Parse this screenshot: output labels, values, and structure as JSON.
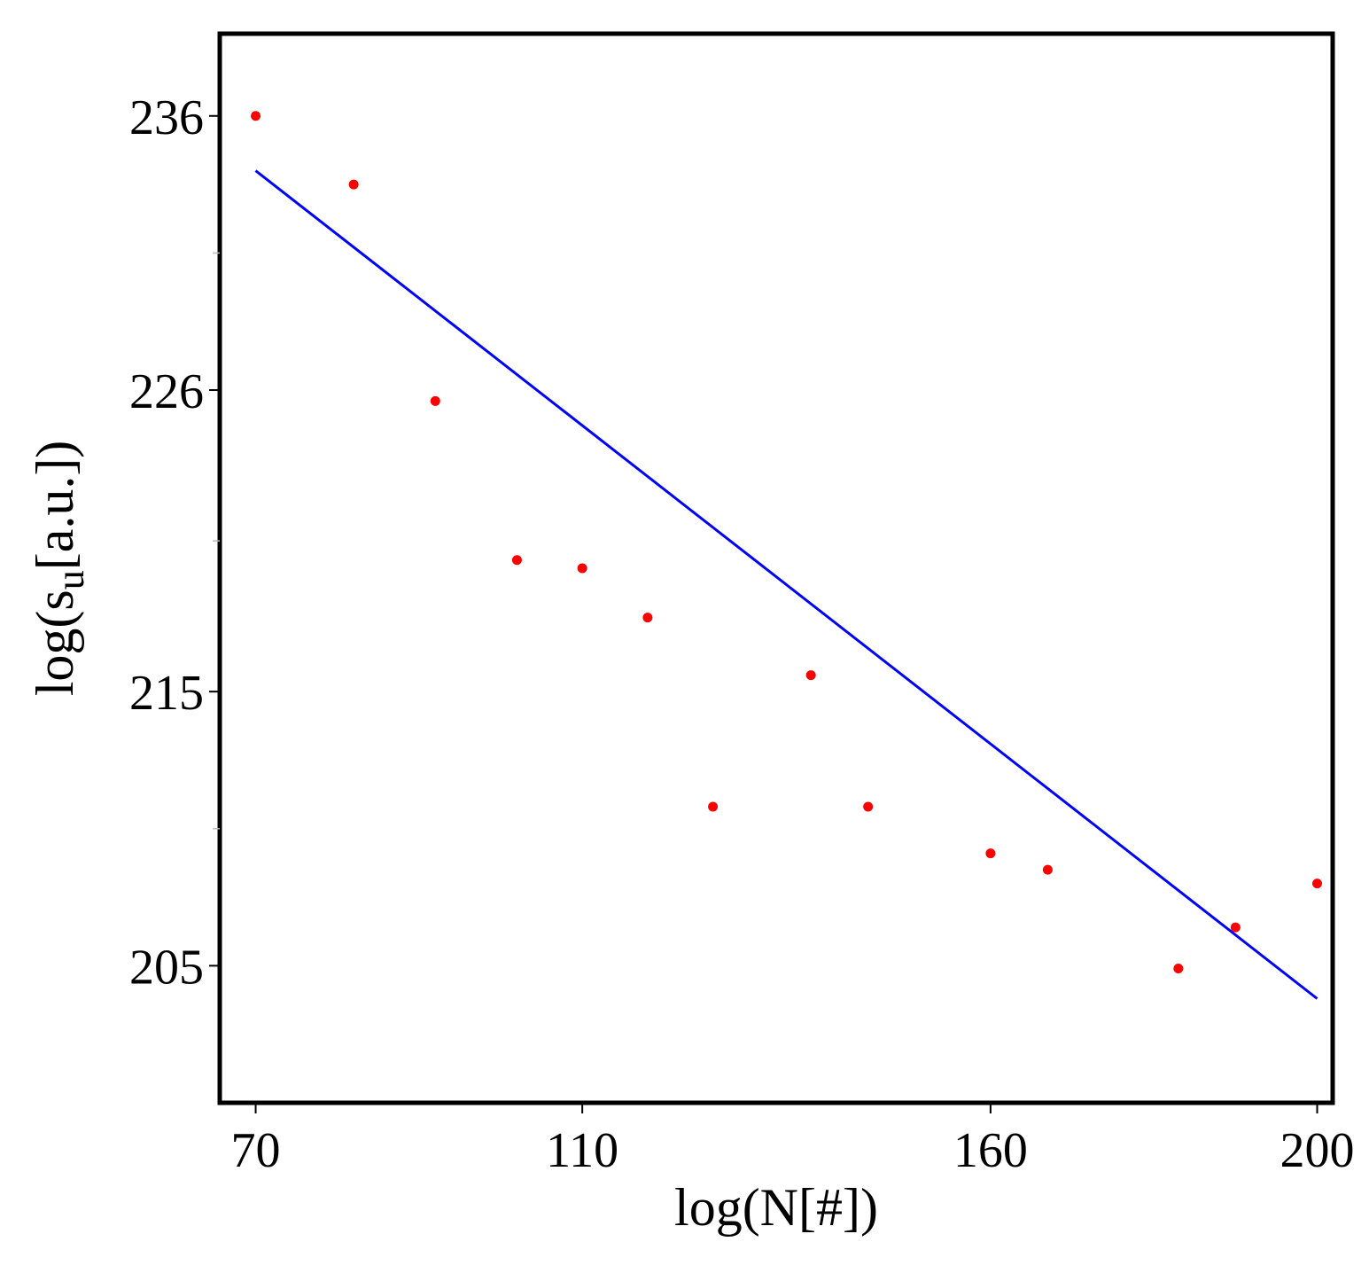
{
  "chart_data": {
    "type": "scatter",
    "title": "",
    "xlabel": "log(N[#])",
    "ylabel": {
      "prefix": "log(s",
      "subscript": "u",
      "suffix": "[a.u.])"
    },
    "x_ticks": [
      70,
      110,
      160,
      200
    ],
    "x_tick_labels": [
      "70",
      "110",
      "160",
      "200"
    ],
    "y_ticks": [
      236,
      226,
      215,
      205
    ],
    "y_tick_labels": [
      "236",
      "226",
      "215",
      "205"
    ],
    "xlim": [
      65.6,
      201.9
    ],
    "ylim": [
      200,
      239
    ],
    "series": [
      {
        "type": "scatter",
        "color": "#ff0000",
        "points": [
          {
            "x": 70,
            "y": 236.0
          },
          {
            "x": 82,
            "y": 233.5
          },
          {
            "x": 92,
            "y": 225.6
          },
          {
            "x": 102,
            "y": 219.8
          },
          {
            "x": 110,
            "y": 219.5
          },
          {
            "x": 118,
            "y": 217.7
          },
          {
            "x": 126,
            "y": 210.8
          },
          {
            "x": 138,
            "y": 215.6
          },
          {
            "x": 145,
            "y": 210.8
          },
          {
            "x": 160,
            "y": 209.1
          },
          {
            "x": 167,
            "y": 208.5
          },
          {
            "x": 183,
            "y": 204.9
          },
          {
            "x": 190,
            "y": 206.4
          },
          {
            "x": 200,
            "y": 208.0
          }
        ]
      },
      {
        "type": "line",
        "color": "#0000ff",
        "points": [
          {
            "x": 70,
            "y": 234.0
          },
          {
            "x": 200,
            "y": 203.8
          }
        ]
      }
    ]
  }
}
